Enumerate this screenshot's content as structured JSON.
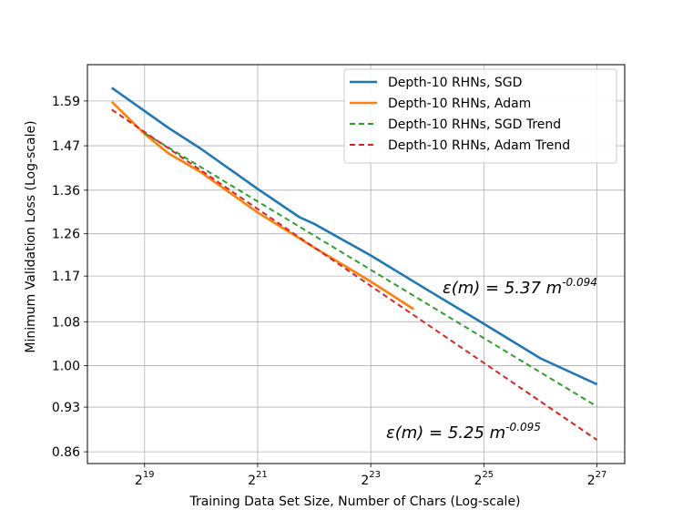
{
  "chart_data": {
    "type": "line",
    "title": "",
    "xlabel": "Training Data Set Size, Number of Chars (Log-scale)",
    "ylabel": "Minimum Validation Loss (Log-scale)",
    "x_scale": "log2",
    "y_scale": "log",
    "xlim_log2": [
      17.99,
      27.49
    ],
    "ylim": [
      0.8425,
      1.6944
    ],
    "x_ticks": [
      {
        "log2": 19,
        "base": "2",
        "exp": "19"
      },
      {
        "log2": 21,
        "base": "2",
        "exp": "21"
      },
      {
        "log2": 23,
        "base": "2",
        "exp": "23"
      },
      {
        "log2": 25,
        "base": "2",
        "exp": "25"
      },
      {
        "log2": 27,
        "base": "2",
        "exp": "27"
      }
    ],
    "y_ticks": [
      {
        "value": 1.59,
        "label": "1.59"
      },
      {
        "value": 1.47,
        "label": "1.47"
      },
      {
        "value": 1.36,
        "label": "1.36"
      },
      {
        "value": 1.26,
        "label": "1.26"
      },
      {
        "value": 1.17,
        "label": "1.17"
      },
      {
        "value": 1.08,
        "label": "1.08"
      },
      {
        "value": 1.0,
        "label": "1.00"
      },
      {
        "value": 0.93,
        "label": "0.93"
      },
      {
        "value": 0.86,
        "label": "0.86"
      }
    ],
    "grid": true,
    "legend_position": "top-right",
    "series": [
      {
        "name": "Depth-10 RHNs, SGD",
        "color": "#1f77b4",
        "style": "solid",
        "x_log2": [
          18.42,
          19.42,
          20.0,
          21.0,
          21.74,
          22.0,
          23.0,
          24.0,
          25.0,
          26.0,
          27.0
        ],
        "y": [
          1.627,
          1.517,
          1.462,
          1.363,
          1.297,
          1.282,
          1.213,
          1.142,
          1.076,
          1.013,
          0.968
        ]
      },
      {
        "name": "Depth-10 RHNs, Adam",
        "color": "#ff7f0e",
        "style": "solid",
        "x_log2": [
          18.42,
          19.0,
          19.42,
          20.0,
          21.0,
          22.0,
          23.0,
          23.76
        ],
        "y": [
          1.588,
          1.501,
          1.451,
          1.403,
          1.308,
          1.23,
          1.159,
          1.104
        ]
      },
      {
        "name": "Depth-10 RHNs, SGD Trend",
        "color": "#2ca02c",
        "style": "dashed",
        "x_log2": [
          19.0,
          27.0
        ],
        "y": [
          1.503,
          0.931
        ]
      },
      {
        "name": "Depth-10 RHNs, Adam Trend",
        "color": "#d62728",
        "style": "dashed",
        "x_log2": [
          18.42,
          27.0
        ],
        "y": [
          1.566,
          0.878
        ]
      }
    ],
    "annotations": [
      {
        "id": "sgd-fit",
        "prefix": "ε(m) = 5.37 m",
        "exponent": "-0.094"
      },
      {
        "id": "adam-fit",
        "prefix": "ε(m) = 5.25 m",
        "exponent": "-0.095"
      }
    ]
  }
}
